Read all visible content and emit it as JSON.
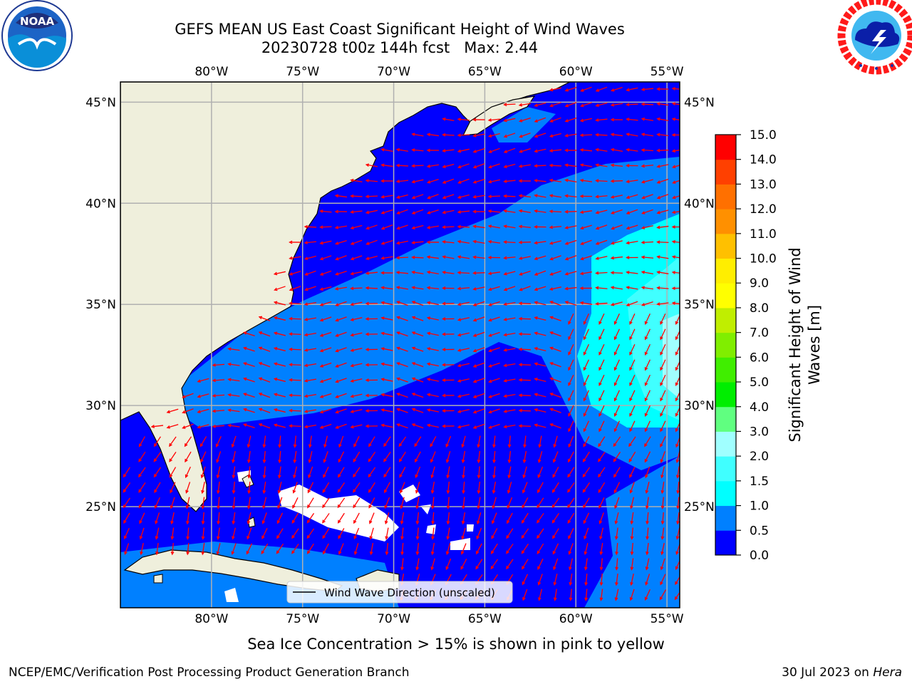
{
  "title": {
    "line1": "GEFS MEAN US East Coast Significant Height of Wind Waves",
    "line2": "20230728 t00z 144h fcst   Max: 2.44"
  },
  "logos": {
    "left": {
      "name": "noaa-logo",
      "text": "NOAA",
      "ring_text": "NATIONAL OCEANIC AND ATMOSPHERIC ADMINISTRATION · U.S. DEPARTMENT OF COMMERCE"
    },
    "right": {
      "name": "nws-logo",
      "ring_text": "NATIONAL WEATHER SERVICE"
    }
  },
  "map": {
    "lon_labels": [
      "80°W",
      "75°W",
      "70°W",
      "65°W",
      "60°W",
      "55°W"
    ],
    "lat_labels": [
      "45°N",
      "40°N",
      "35°N",
      "30°N",
      "25°N"
    ],
    "lon_range": [
      -85,
      -54.3
    ],
    "lat_range": [
      20,
      46
    ],
    "legend_label": "Wind Wave Direction (unscaled)",
    "colors": {
      "land": "#efefdc",
      "band_0_0_5": "#0000ff",
      "band_0_5_1_0": "#0080ff",
      "band_1_0_1_5": "#00ffff",
      "band_1_5_2_0": "#40ffff",
      "band_2_0_3_0": "#a0ffff",
      "arrow": "#ff0000",
      "grid": "#b0b0b0"
    }
  },
  "colorbar": {
    "label_line1": "Significant Height of Wind",
    "label_line2": "Waves [m]",
    "ticks": [
      "0.0",
      "0.5",
      "1.0",
      "1.5",
      "2.0",
      "3.0",
      "4.0",
      "5.0",
      "6.0",
      "7.0",
      "8.0",
      "9.0",
      "10.0",
      "11.0",
      "12.0",
      "13.0",
      "14.0",
      "15.0"
    ],
    "colors": [
      "#0000ff",
      "#0080ff",
      "#00ffff",
      "#40ffff",
      "#a0ffff",
      "#60ff80",
      "#00ee00",
      "#40ee00",
      "#80ee00",
      "#c0ee00",
      "#ffff00",
      "#ffee00",
      "#ffc000",
      "#ff9000",
      "#ff7000",
      "#ff4000",
      "#ff0000"
    ]
  },
  "footer": {
    "note": "Sea Ice Concentration > 15% is shown in pink to yellow",
    "producer": "NCEP/EMC/Verification Post Processing Product Generation Branch",
    "date": "30 Jul 2023 on ",
    "machine": "Hera"
  }
}
